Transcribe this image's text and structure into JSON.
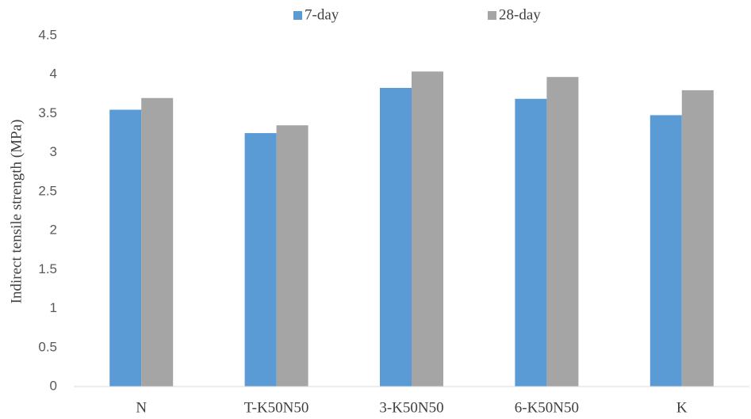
{
  "chart_data": {
    "type": "bar",
    "y_label": "Indirect tensile strength (MPa)",
    "categories": [
      "N",
      "T-K50N50",
      "3-K50N50",
      "6-K50N50",
      "K"
    ],
    "series": [
      {
        "name": "7-day",
        "color": "#5b9bd5",
        "values": [
          3.55,
          3.25,
          3.83,
          3.69,
          3.48
        ]
      },
      {
        "name": "28-day",
        "color": "#a5a5a5",
        "values": [
          3.7,
          3.35,
          4.04,
          3.97,
          3.8
        ]
      }
    ],
    "ylim": [
      0,
      4.5
    ],
    "yticks": [
      0,
      0.5,
      1,
      1.5,
      2,
      2.5,
      3,
      3.5,
      4,
      4.5
    ],
    "grid": false,
    "legend": "top"
  }
}
